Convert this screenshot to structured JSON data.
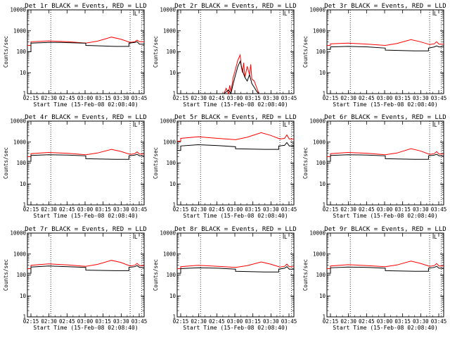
{
  "window": {
    "background": "#ffffff"
  },
  "chart_data": [
    {
      "type": "line",
      "title": "Det 1r BLACK = Events, RED = LLD",
      "xlabel": "Start Time (15-Feb-08 02:08:40)",
      "ylabel": "Counts/sec",
      "x_ticks": [
        "02:15",
        "02:30",
        "02:45",
        "03:00",
        "03:15",
        "03:30",
        "03:45"
      ],
      "y_ticks": [
        "1",
        "10",
        "100",
        "1000",
        "10000"
      ],
      "yscale": "log",
      "ylim": [
        1,
        10000
      ],
      "xlim_min": [
        0,
        100
      ],
      "vlines_min": [
        20,
        88,
        98
      ],
      "marker_label": "L",
      "marker_x_min": 91,
      "series": [
        {
          "name": "Events",
          "color": "#000000",
          "x": [
            0,
            3,
            3,
            18,
            28,
            48,
            50,
            50,
            75,
            87,
            87,
            92,
            94,
            96,
            96,
            100
          ],
          "y": [
            100,
            100,
            260,
            280,
            280,
            260,
            260,
            200,
            180,
            180,
            260,
            280,
            300,
            230,
            230,
            230
          ]
        },
        {
          "name": "LLD",
          "color": "#ff0000",
          "x": [
            0,
            3,
            3,
            18,
            35,
            50,
            60,
            72,
            80,
            88,
            92,
            94,
            96,
            100
          ],
          "y": [
            200,
            200,
            300,
            330,
            300,
            260,
            320,
            500,
            400,
            280,
            300,
            360,
            300,
            300
          ]
        }
      ]
    },
    {
      "type": "line",
      "title": "Det 2r BLACK = Events, RED = LLD",
      "xlabel": "Start Time (15-Feb-08 02:08:40)",
      "ylabel": "Counts/sec",
      "x_ticks": [
        "02:15",
        "02:30",
        "02:45",
        "03:00",
        "03:15",
        "03:30",
        "03:45"
      ],
      "y_ticks": [
        "1",
        "10",
        "100",
        "1000",
        "10000"
      ],
      "yscale": "log",
      "ylim": [
        1,
        10000
      ],
      "xlim_min": [
        0,
        100
      ],
      "vlines_min": [
        20,
        88,
        98
      ],
      "marker_label": "L",
      "marker_x_min": 91,
      "series": [
        {
          "name": "Events",
          "color": "#000000",
          "x": [
            40,
            44,
            46,
            48,
            50,
            52,
            54,
            56,
            58,
            60,
            62,
            64,
            66,
            68,
            70
          ],
          "y": [
            1,
            1.5,
            1,
            3,
            8,
            20,
            35,
            12,
            6,
            4,
            8,
            3,
            2,
            1.3,
            1
          ]
        },
        {
          "name": "LLD",
          "color": "#ff0000",
          "x": [
            40,
            42,
            44,
            45,
            46,
            48,
            50,
            52,
            54,
            55,
            56,
            57,
            58,
            60,
            62,
            63,
            64,
            66,
            68,
            70
          ],
          "y": [
            1,
            1.8,
            1,
            2.5,
            1.2,
            6,
            15,
            40,
            70,
            18,
            10,
            30,
            6,
            20,
            8,
            25,
            5,
            4,
            2,
            1
          ]
        }
      ]
    },
    {
      "type": "line",
      "title": "Det 3r BLACK = Events, RED = LLD",
      "xlabel": "Start Time (15-Feb-08 02:08:40)",
      "ylabel": "Counts/sec",
      "x_ticks": [
        "02:15",
        "02:30",
        "02:45",
        "03:00",
        "03:15",
        "03:30",
        "03:45"
      ],
      "y_ticks": [
        "1",
        "10",
        "100",
        "1000",
        "10000"
      ],
      "yscale": "log",
      "ylim": [
        1,
        10000
      ],
      "xlim_min": [
        0,
        100
      ],
      "vlines_min": [
        20,
        88,
        98
      ],
      "marker_label": "L",
      "marker_x_min": 91,
      "series": [
        {
          "name": "Events",
          "color": "#000000",
          "x": [
            0,
            3,
            3,
            18,
            35,
            50,
            50,
            75,
            87,
            87,
            92,
            94,
            96,
            100
          ],
          "y": [
            130,
            130,
            170,
            180,
            170,
            150,
            120,
            110,
            110,
            150,
            170,
            190,
            170,
            170
          ]
        },
        {
          "name": "LLD",
          "color": "#ff0000",
          "x": [
            0,
            3,
            3,
            18,
            35,
            50,
            60,
            72,
            80,
            88,
            92,
            94,
            96,
            100
          ],
          "y": [
            200,
            200,
            240,
            260,
            230,
            200,
            250,
            380,
            300,
            220,
            240,
            300,
            230,
            230
          ]
        }
      ]
    },
    {
      "type": "line",
      "title": "Det 4r BLACK = Events, RED = LLD",
      "xlabel": "Start Time (15-Feb-08 02:08:40)",
      "ylabel": "Counts/sec",
      "x_ticks": [
        "02:15",
        "02:30",
        "02:45",
        "03:00",
        "03:15",
        "03:30",
        "03:45"
      ],
      "y_ticks": [
        "1",
        "10",
        "100",
        "1000",
        "10000"
      ],
      "yscale": "log",
      "ylim": [
        1,
        10000
      ],
      "xlim_min": [
        0,
        100
      ],
      "vlines_min": [
        20,
        88,
        98
      ],
      "marker_label": "L",
      "marker_x_min": 91,
      "series": [
        {
          "name": "Events",
          "color": "#000000",
          "x": [
            0,
            3,
            3,
            18,
            35,
            50,
            50,
            75,
            87,
            87,
            92,
            94,
            96,
            100
          ],
          "y": [
            120,
            120,
            230,
            250,
            240,
            220,
            160,
            150,
            150,
            220,
            240,
            260,
            220,
            220
          ]
        },
        {
          "name": "LLD",
          "color": "#ff0000",
          "x": [
            0,
            3,
            3,
            18,
            35,
            50,
            60,
            72,
            80,
            88,
            92,
            94,
            96,
            100
          ],
          "y": [
            200,
            200,
            280,
            320,
            290,
            250,
            300,
            450,
            360,
            260,
            280,
            340,
            270,
            270
          ]
        }
      ]
    },
    {
      "type": "line",
      "title": "Det 5r BLACK = Events, RED = LLD",
      "xlabel": "Start Time (15-Feb-08 02:08:40)",
      "ylabel": "Counts/sec",
      "x_ticks": [
        "02:15",
        "02:30",
        "02:45",
        "03:00",
        "03:15",
        "03:30",
        "03:45"
      ],
      "y_ticks": [
        "1",
        "10",
        "100",
        "1000",
        "10000"
      ],
      "yscale": "log",
      "ylim": [
        1,
        10000
      ],
      "xlim_min": [
        0,
        100
      ],
      "vlines_min": [
        20,
        88,
        98
      ],
      "marker_label": "L",
      "marker_x_min": 91,
      "series": [
        {
          "name": "Events",
          "color": "#000000",
          "x": [
            0,
            3,
            3,
            18,
            35,
            50,
            50,
            75,
            87,
            87,
            92,
            94,
            96,
            100
          ],
          "y": [
            400,
            400,
            650,
            750,
            680,
            600,
            480,
            450,
            450,
            650,
            700,
            950,
            650,
            650
          ]
        },
        {
          "name": "LLD",
          "color": "#ff0000",
          "x": [
            0,
            3,
            3,
            18,
            35,
            50,
            60,
            72,
            80,
            88,
            92,
            94,
            96,
            100
          ],
          "y": [
            1100,
            1100,
            1500,
            1800,
            1500,
            1300,
            1700,
            2800,
            2100,
            1400,
            1500,
            2200,
            1400,
            1400
          ]
        }
      ]
    },
    {
      "type": "line",
      "title": "Det 6r BLACK = Events, RED = LLD",
      "xlabel": "Start Time (15-Feb-08 02:08:40)",
      "ylabel": "Counts/sec",
      "x_ticks": [
        "02:15",
        "02:30",
        "02:45",
        "03:00",
        "03:15",
        "03:30",
        "03:45"
      ],
      "y_ticks": [
        "1",
        "10",
        "100",
        "1000",
        "10000"
      ],
      "yscale": "log",
      "ylim": [
        1,
        10000
      ],
      "xlim_min": [
        0,
        100
      ],
      "vlines_min": [
        20,
        88,
        98
      ],
      "marker_label": "L",
      "marker_x_min": 91,
      "series": [
        {
          "name": "Events",
          "color": "#000000",
          "x": [
            0,
            3,
            3,
            18,
            35,
            50,
            50,
            75,
            87,
            87,
            92,
            94,
            96,
            100
          ],
          "y": [
            120,
            120,
            230,
            250,
            240,
            220,
            160,
            150,
            150,
            220,
            240,
            260,
            220,
            220
          ]
        },
        {
          "name": "LLD",
          "color": "#ff0000",
          "x": [
            0,
            3,
            3,
            18,
            35,
            50,
            60,
            72,
            80,
            88,
            92,
            94,
            96,
            100
          ],
          "y": [
            200,
            200,
            280,
            320,
            290,
            250,
            300,
            480,
            380,
            260,
            280,
            350,
            270,
            270
          ]
        }
      ]
    },
    {
      "type": "line",
      "title": "Det 7r BLACK = Events, RED = LLD",
      "xlabel": "Start Time (15-Feb-08 02:08:40)",
      "ylabel": "Counts/sec",
      "x_ticks": [
        "02:15",
        "02:30",
        "02:45",
        "03:00",
        "03:15",
        "03:30",
        "03:45"
      ],
      "y_ticks": [
        "1",
        "10",
        "100",
        "1000",
        "10000"
      ],
      "yscale": "log",
      "ylim": [
        1,
        10000
      ],
      "xlim_min": [
        0,
        100
      ],
      "vlines_min": [
        20,
        88,
        98
      ],
      "marker_label": "L",
      "marker_x_min": 91,
      "series": [
        {
          "name": "Events",
          "color": "#000000",
          "x": [
            0,
            3,
            3,
            18,
            35,
            50,
            50,
            75,
            87,
            87,
            92,
            94,
            96,
            100
          ],
          "y": [
            120,
            120,
            240,
            270,
            250,
            230,
            170,
            160,
            160,
            230,
            250,
            280,
            230,
            230
          ]
        },
        {
          "name": "LLD",
          "color": "#ff0000",
          "x": [
            0,
            3,
            3,
            18,
            35,
            50,
            60,
            72,
            80,
            88,
            92,
            94,
            96,
            100
          ],
          "y": [
            200,
            200,
            290,
            340,
            300,
            260,
            320,
            500,
            400,
            270,
            290,
            360,
            280,
            280
          ]
        }
      ]
    },
    {
      "type": "line",
      "title": "Det 8r BLACK = Events, RED = LLD",
      "xlabel": "Start Time (15-Feb-08 02:08:40)",
      "ylabel": "Counts/sec",
      "x_ticks": [
        "02:15",
        "02:30",
        "02:45",
        "03:00",
        "03:15",
        "03:30",
        "03:45"
      ],
      "y_ticks": [
        "1",
        "10",
        "100",
        "1000",
        "10000"
      ],
      "yscale": "log",
      "ylim": [
        1,
        10000
      ],
      "xlim_min": [
        0,
        100
      ],
      "vlines_min": [
        20,
        88,
        98
      ],
      "marker_label": "L",
      "marker_x_min": 91,
      "series": [
        {
          "name": "Events",
          "color": "#000000",
          "x": [
            0,
            3,
            3,
            18,
            35,
            50,
            50,
            75,
            87,
            87,
            92,
            94,
            96,
            100
          ],
          "y": [
            120,
            120,
            200,
            220,
            210,
            190,
            150,
            140,
            140,
            190,
            210,
            250,
            190,
            190
          ]
        },
        {
          "name": "LLD",
          "color": "#ff0000",
          "x": [
            0,
            3,
            3,
            18,
            35,
            50,
            60,
            72,
            80,
            88,
            92,
            94,
            96,
            100
          ],
          "y": [
            200,
            200,
            250,
            290,
            260,
            230,
            280,
            420,
            330,
            240,
            260,
            330,
            250,
            250
          ]
        }
      ]
    },
    {
      "type": "line",
      "title": "Det 9r BLACK = Events, RED = LLD",
      "xlabel": "Start Time (15-Feb-08 02:08:40)",
      "ylabel": "Counts/sec",
      "x_ticks": [
        "02:15",
        "02:30",
        "02:45",
        "03:00",
        "03:15",
        "03:30",
        "03:45"
      ],
      "y_ticks": [
        "1",
        "10",
        "100",
        "1000",
        "10000"
      ],
      "yscale": "log",
      "ylim": [
        1,
        10000
      ],
      "xlim_min": [
        0,
        100
      ],
      "vlines_min": [
        20,
        88,
        98
      ],
      "marker_label": "L",
      "marker_x_min": 91,
      "series": [
        {
          "name": "Events",
          "color": "#000000",
          "x": [
            0,
            3,
            3,
            18,
            35,
            50,
            50,
            75,
            87,
            87,
            92,
            94,
            96,
            100
          ],
          "y": [
            120,
            120,
            220,
            240,
            230,
            210,
            160,
            150,
            150,
            210,
            230,
            260,
            210,
            210
          ]
        },
        {
          "name": "LLD",
          "color": "#ff0000",
          "x": [
            0,
            3,
            3,
            18,
            35,
            50,
            60,
            72,
            80,
            88,
            92,
            94,
            96,
            100
          ],
          "y": [
            200,
            200,
            270,
            310,
            280,
            250,
            300,
            460,
            360,
            260,
            280,
            350,
            270,
            270
          ]
        }
      ]
    }
  ]
}
